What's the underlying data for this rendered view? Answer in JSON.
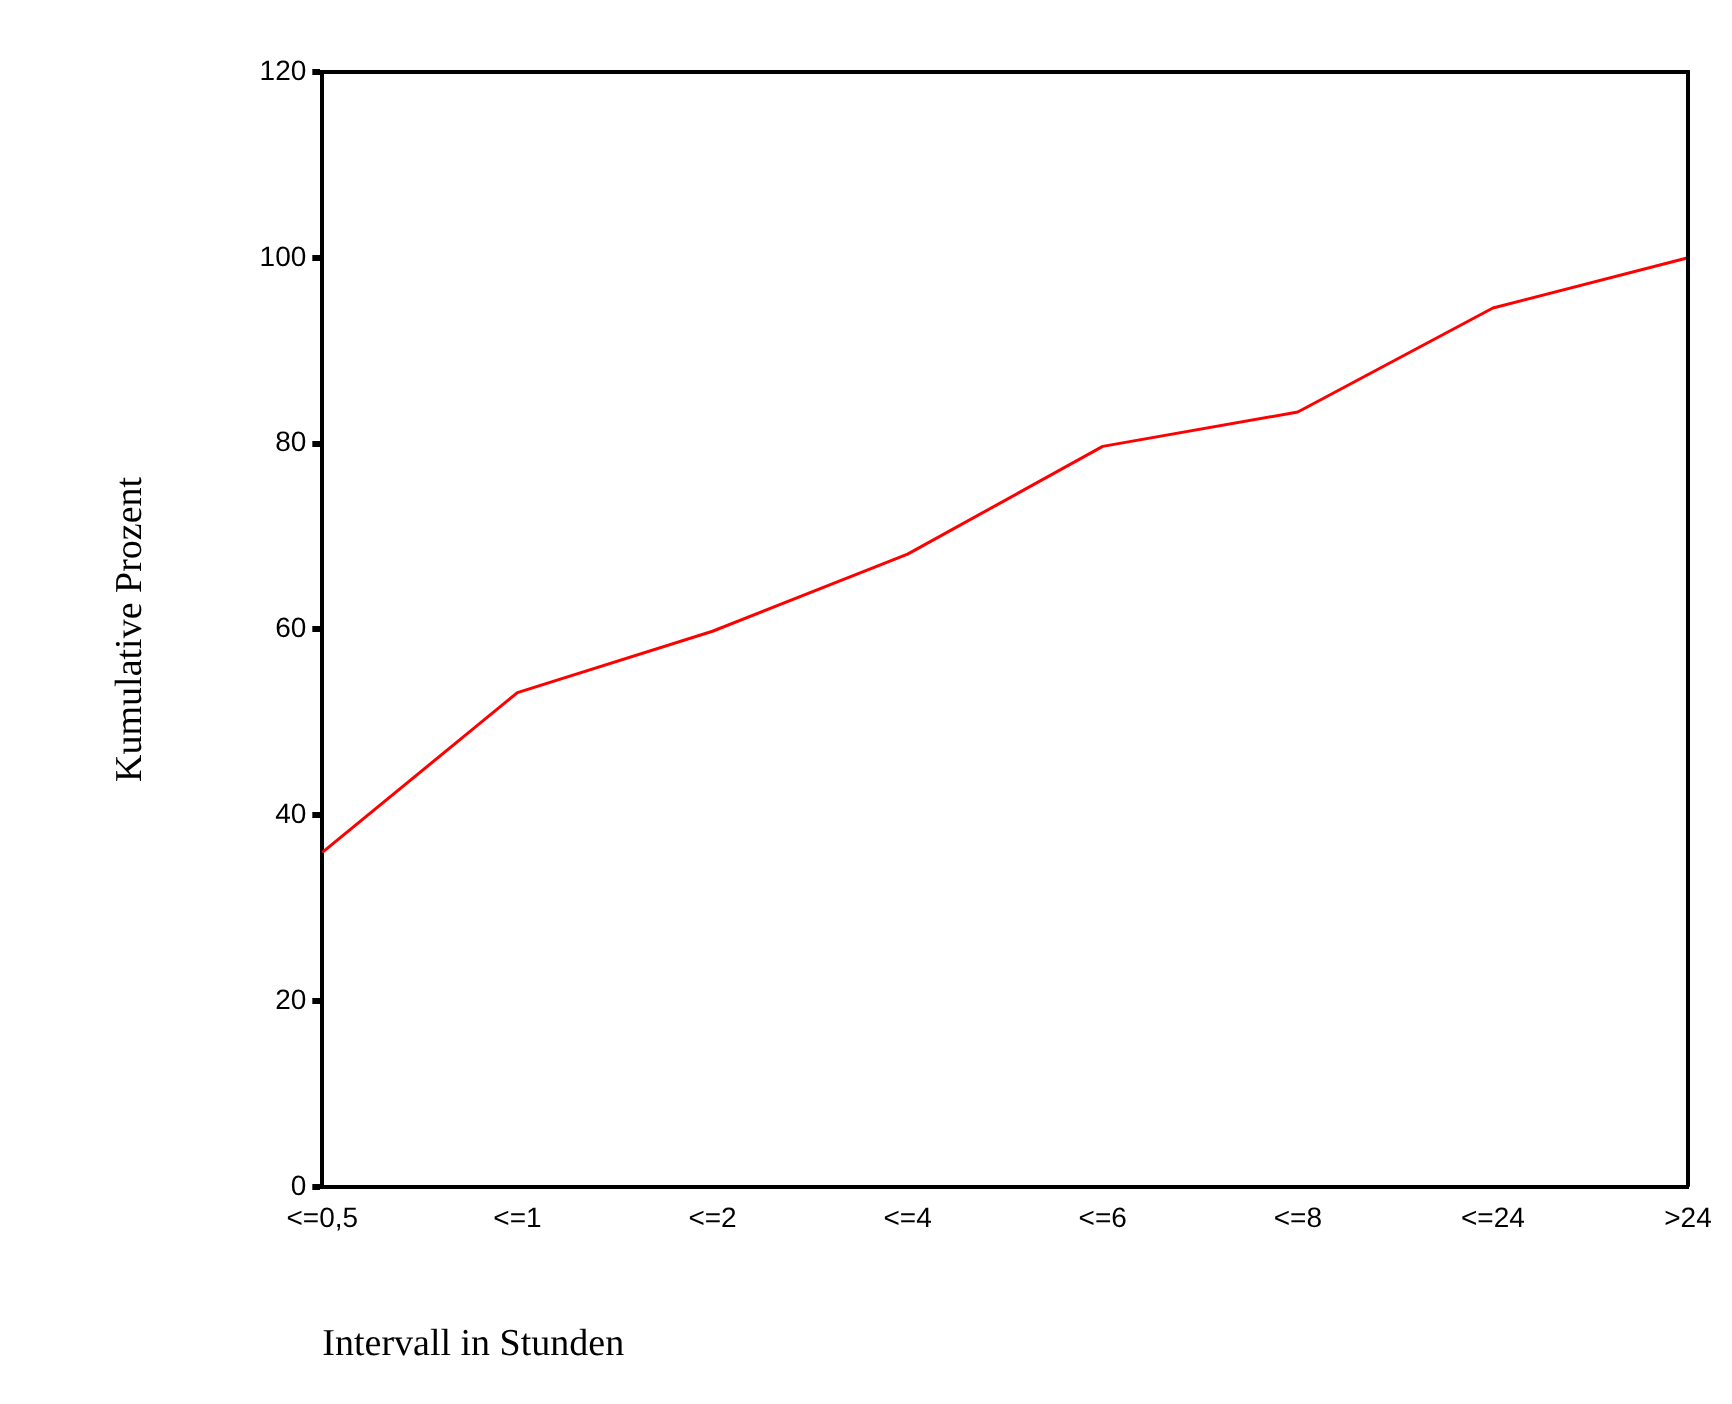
{
  "chart_data": {
    "type": "line",
    "xlabel": "Intervall in Stunden",
    "ylabel": "Kumulative Prozent",
    "categories": [
      "<=0,5",
      "<=1",
      "<=2",
      "<=4",
      "<=6",
      "<=8",
      "<=24",
      ">24"
    ],
    "series": [
      {
        "color": "#ff0000",
        "values": [
          36,
          53.2,
          59.8,
          68.1,
          79.7,
          83.4,
          94.6,
          100
        ]
      }
    ],
    "ylim": [
      0,
      120
    ],
    "yticks": [
      0,
      20,
      40,
      60,
      80,
      100,
      120
    ],
    "grid": false,
    "legend": false,
    "marker": "none",
    "line_style": "solid"
  }
}
